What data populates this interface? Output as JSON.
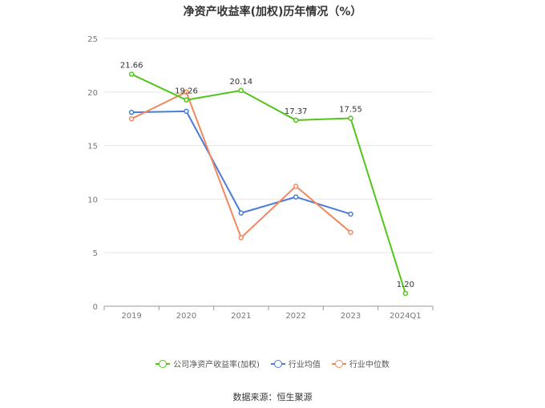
{
  "title": "净资产收益率(加权)历年情况（%）",
  "source": "数据来源：恒生聚源",
  "colors": {
    "grid": "#e6e6e6",
    "axis": "#999999",
    "tick_text": "#777777",
    "label_text": "#333333"
  },
  "chart_data": {
    "type": "line",
    "title": "净资产收益率(加权)历年情况（%）",
    "xlabel": "",
    "ylabel": "",
    "categories": [
      "2019",
      "2020",
      "2021",
      "2022",
      "2023",
      "2024Q1"
    ],
    "ylim": [
      0,
      25
    ],
    "yticks": [
      0,
      5,
      10,
      15,
      20,
      25
    ],
    "grid": true,
    "legend_position": "bottom",
    "series": [
      {
        "name": "公司净资产收益率(加权)",
        "color": "#52c41a",
        "values": [
          21.66,
          19.26,
          20.14,
          17.37,
          17.55,
          1.2
        ],
        "labels": [
          "21.66",
          "19.26",
          "20.14",
          "17.37",
          "17.55",
          "1.20"
        ]
      },
      {
        "name": "行业均值",
        "color": "#4a7bd8",
        "values": [
          18.1,
          18.2,
          8.7,
          10.2,
          8.6,
          null
        ]
      },
      {
        "name": "行业中位数",
        "color": "#f0895e",
        "values": [
          17.5,
          20.0,
          6.4,
          11.2,
          6.9,
          null
        ]
      }
    ]
  }
}
